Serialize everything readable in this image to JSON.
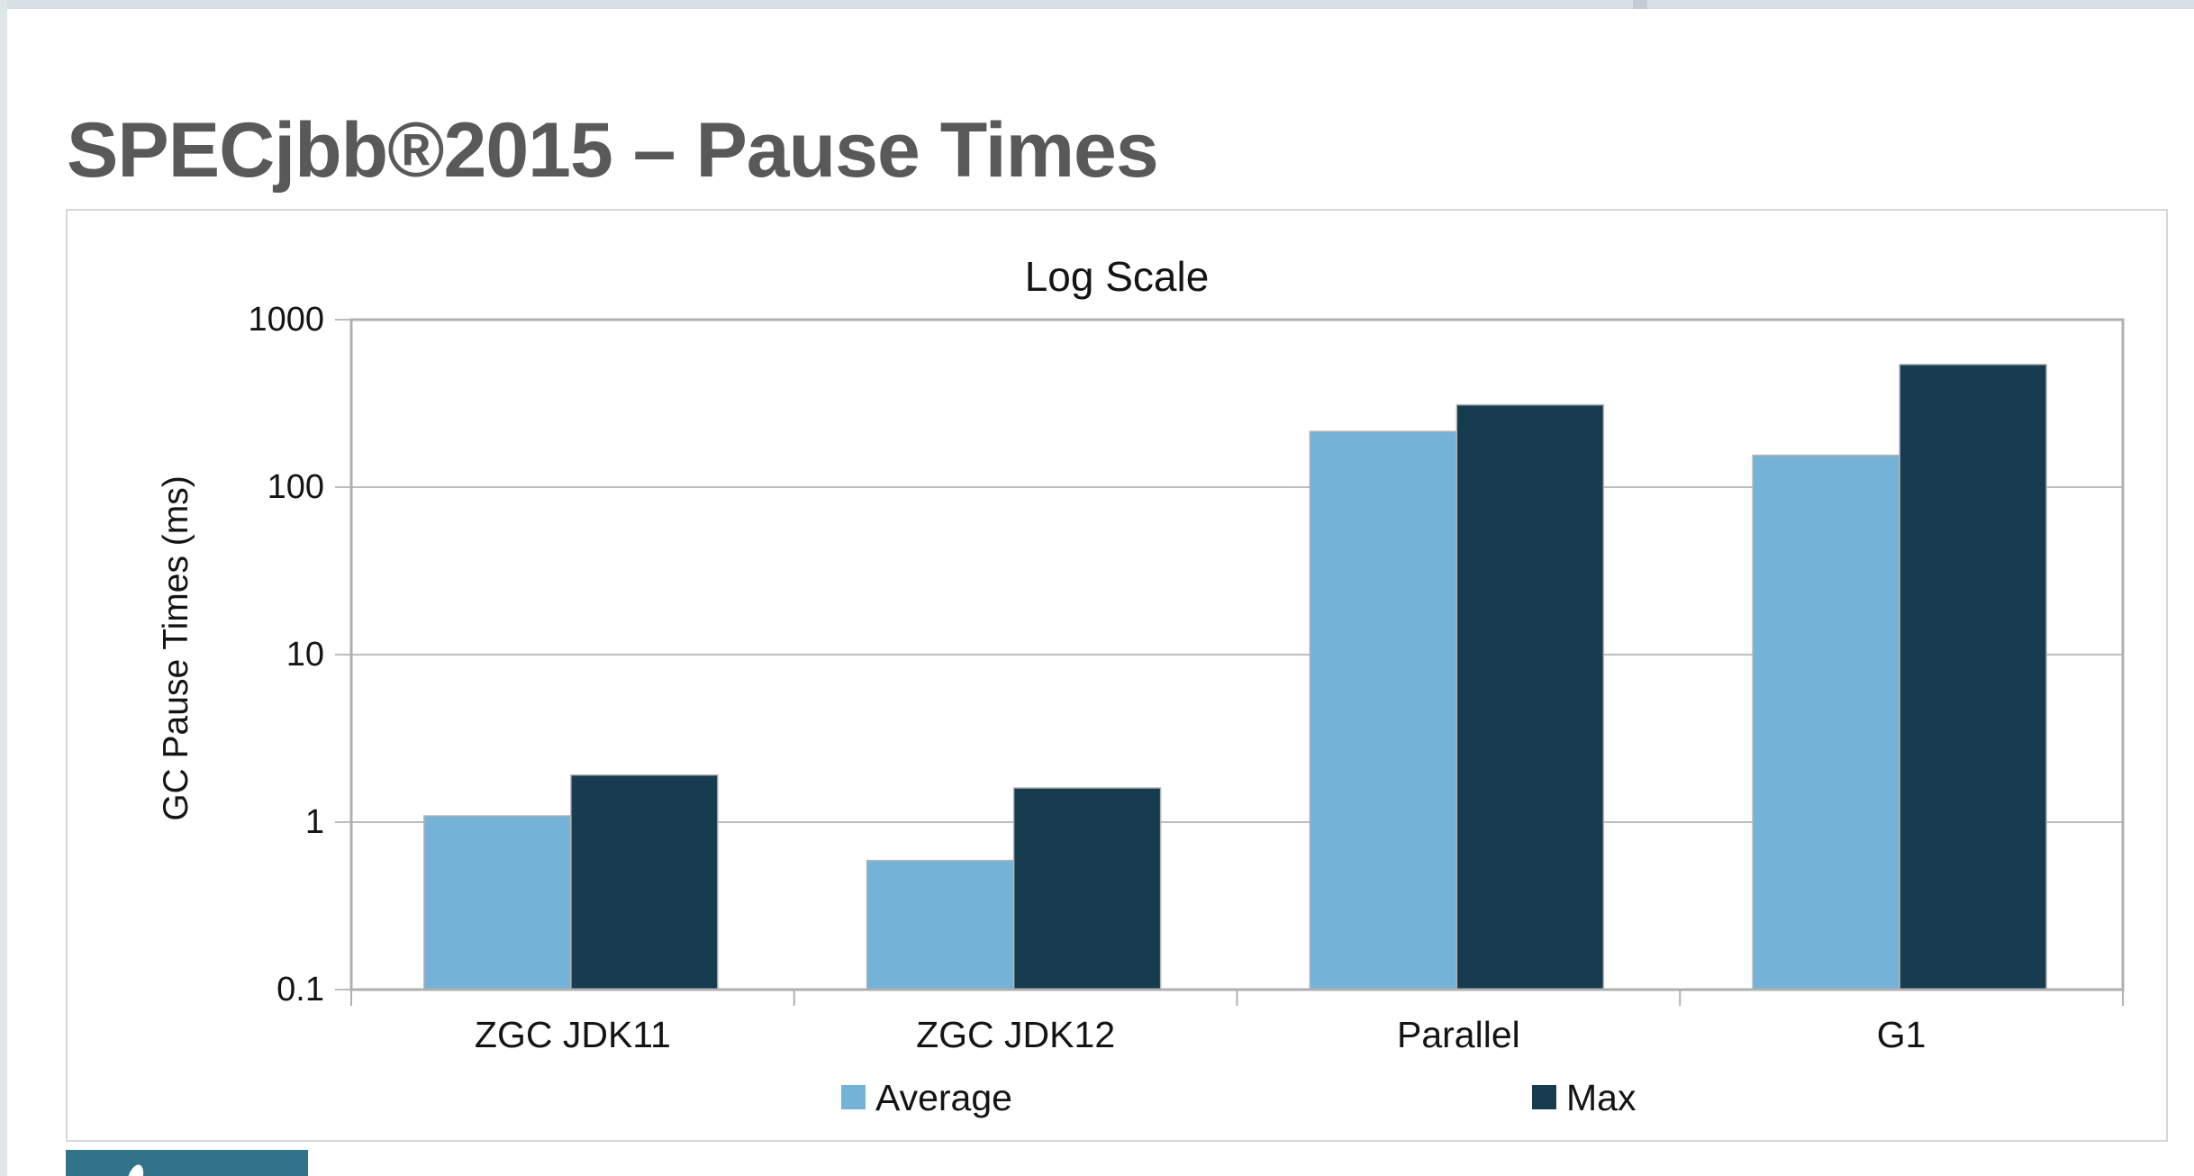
{
  "header": {
    "title": "SPECjbb®2015 – Pause Times"
  },
  "colors": {
    "title_text": "#595959",
    "top_strip": "#d9e0e5",
    "top_strip_notch": "#c3ccd4",
    "left_strip": "#dfe6ea",
    "grid_line": "#bdbdbd",
    "plot_border": "#b0b0b0",
    "axis_text": "#141414",
    "logo_teal": "#31748a"
  },
  "chart_data": {
    "type": "bar",
    "title": "Log Scale",
    "xlabel": "",
    "ylabel": "GC Pause Times (ms)",
    "y_scale": "log",
    "ylim": [
      0.1,
      1000
    ],
    "y_ticks": [
      1000,
      100,
      10,
      1,
      0.1
    ],
    "y_tick_labels": [
      "1000",
      "100",
      "10",
      "1",
      "0.1"
    ],
    "grid": true,
    "legend_position": "bottom",
    "categories": [
      "ZGC JDK11",
      "ZGC JDK12",
      "Parallel",
      "G1"
    ],
    "series": [
      {
        "name": "Average",
        "color": "#74b2d8",
        "values": [
          1.09,
          0.59,
          215,
          155
        ]
      },
      {
        "name": "Max",
        "color": "#173c50",
        "values": [
          1.91,
          1.6,
          310,
          540
        ]
      }
    ]
  }
}
